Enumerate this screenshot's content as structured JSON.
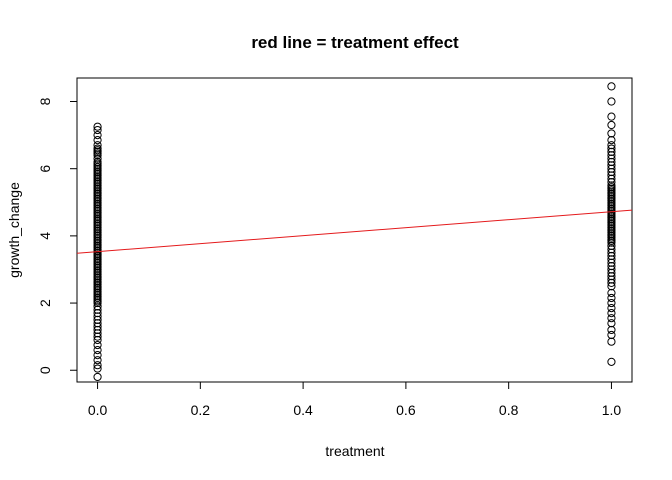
{
  "chart_data": {
    "type": "scatter",
    "title": "red line  = treatment effect",
    "xlabel": "treatment",
    "ylabel": "growth_change",
    "xlim": [
      -0.04,
      1.04
    ],
    "ylim": [
      -0.35,
      8.7
    ],
    "x_ticks": [
      0,
      0.2,
      0.4,
      0.6,
      0.8,
      1
    ],
    "x_tick_labels": [
      "0.0",
      "0.2",
      "0.4",
      "0.6",
      "0.8",
      "1.0"
    ],
    "y_ticks": [
      0,
      2,
      4,
      6,
      8
    ],
    "y_tick_labels": [
      "0",
      "2",
      "4",
      "6",
      "8"
    ],
    "grid": false,
    "series": [
      {
        "x": 0,
        "y": [
          7.25,
          7.15,
          7.0,
          6.85,
          6.7,
          6.6,
          6.55,
          6.5,
          6.45,
          6.4,
          6.3,
          6.2,
          6.15,
          6.1,
          6.05,
          6.0,
          5.95,
          5.9,
          5.85,
          5.8,
          5.75,
          5.7,
          5.65,
          5.6,
          5.55,
          5.5,
          5.45,
          5.4,
          5.35,
          5.3,
          5.25,
          5.2,
          5.15,
          5.1,
          5.05,
          5.0,
          4.95,
          4.9,
          4.85,
          4.8,
          4.75,
          4.7,
          4.65,
          4.6,
          4.55,
          4.5,
          4.45,
          4.4,
          4.35,
          4.3,
          4.25,
          4.2,
          4.15,
          4.1,
          4.05,
          4.0,
          3.95,
          3.9,
          3.85,
          3.8,
          3.75,
          3.7,
          3.65,
          3.6,
          3.55,
          3.5,
          3.45,
          3.4,
          3.35,
          3.3,
          3.25,
          3.2,
          3.15,
          3.1,
          3.05,
          3.0,
          2.95,
          2.9,
          2.85,
          2.8,
          2.75,
          2.7,
          2.65,
          2.6,
          2.55,
          2.5,
          2.45,
          2.4,
          2.35,
          2.3,
          2.25,
          2.2,
          2.15,
          2.1,
          2.05,
          2.0,
          1.9,
          1.8,
          1.7,
          1.6,
          1.5,
          1.4,
          1.3,
          1.2,
          1.1,
          1.0,
          0.9,
          0.75,
          0.6,
          0.45,
          0.3,
          0.15,
          0.05,
          -0.2
        ]
      },
      {
        "x": 1,
        "y": [
          8.45,
          8.0,
          7.55,
          7.3,
          7.05,
          6.85,
          6.7,
          6.6,
          6.5,
          6.4,
          6.3,
          6.2,
          6.1,
          6.0,
          5.9,
          5.8,
          5.7,
          5.6,
          5.5,
          5.45,
          5.4,
          5.35,
          5.3,
          5.25,
          5.2,
          5.15,
          5.1,
          5.05,
          5.0,
          4.95,
          4.9,
          4.85,
          4.8,
          4.75,
          4.7,
          4.65,
          4.6,
          4.55,
          4.5,
          4.45,
          4.4,
          4.35,
          4.3,
          4.25,
          4.2,
          4.15,
          4.1,
          4.05,
          4.0,
          3.95,
          3.9,
          3.85,
          3.8,
          3.7,
          3.6,
          3.5,
          3.4,
          3.3,
          3.2,
          3.1,
          3.0,
          2.9,
          2.8,
          2.7,
          2.6,
          2.5,
          2.3,
          2.15,
          2.0,
          1.85,
          1.7,
          1.55,
          1.4,
          1.2,
          1.05,
          0.85,
          0.25
        ]
      }
    ],
    "line": {
      "color": "#e41a1c",
      "intercept": 3.53,
      "slope": 1.19
    }
  }
}
